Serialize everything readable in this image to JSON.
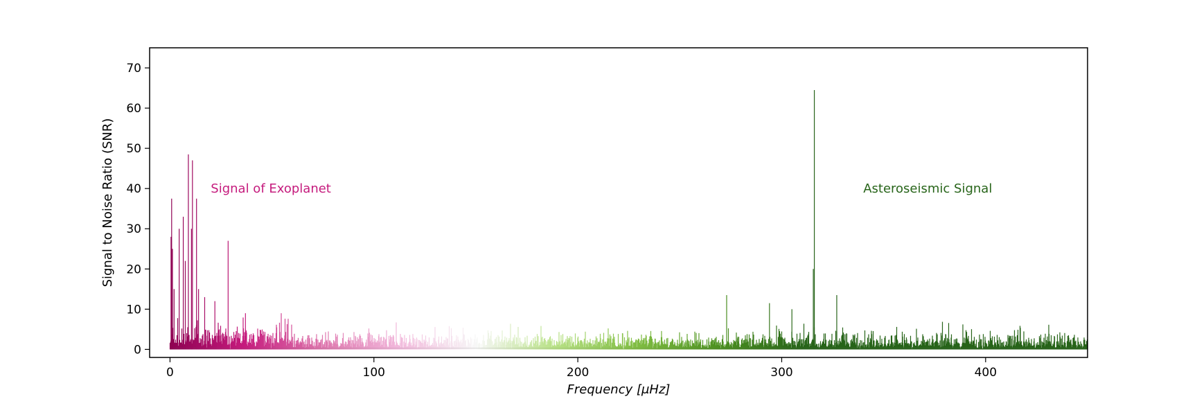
{
  "chart_data": {
    "type": "line",
    "xlabel": "Frequency [μHz]",
    "ylabel": "Signal to Noise Ratio (SNR)",
    "xlim": [
      -10,
      450
    ],
    "ylim": [
      -2,
      75
    ],
    "x_ticks": [
      0,
      100,
      200,
      300,
      400
    ],
    "y_ticks": [
      0,
      10,
      20,
      30,
      40,
      50,
      60,
      70
    ],
    "grid": false,
    "colormap": "PiYG",
    "colors": {
      "low_freq": "#8e0152",
      "mid_low": "#c51b7d",
      "mid_pink": "#de77ae",
      "light_pink": "#f1b6da",
      "neutral": "#f7f7f7",
      "light_green": "#b8e186",
      "mid_green": "#7fbc41",
      "green": "#4d9221",
      "high_freq": "#276419"
    },
    "peaks": [
      {
        "x": 0.5,
        "y": 28
      },
      {
        "x": 0.8,
        "y": 37.5
      },
      {
        "x": 1.2,
        "y": 25
      },
      {
        "x": 2.0,
        "y": 15
      },
      {
        "x": 4.5,
        "y": 30
      },
      {
        "x": 6.5,
        "y": 33
      },
      {
        "x": 7.5,
        "y": 22
      },
      {
        "x": 9.0,
        "y": 48.5
      },
      {
        "x": 10.5,
        "y": 30
      },
      {
        "x": 11.0,
        "y": 47
      },
      {
        "x": 13.0,
        "y": 37.5
      },
      {
        "x": 14.0,
        "y": 15
      },
      {
        "x": 17.0,
        "y": 13
      },
      {
        "x": 22.0,
        "y": 12
      },
      {
        "x": 28.5,
        "y": 27
      },
      {
        "x": 37.0,
        "y": 9
      },
      {
        "x": 273.0,
        "y": 13.5
      },
      {
        "x": 294.0,
        "y": 11.5
      },
      {
        "x": 305.0,
        "y": 10
      },
      {
        "x": 315.5,
        "y": 20
      },
      {
        "x": 316.0,
        "y": 64.5
      },
      {
        "x": 327.0,
        "y": 13.5
      }
    ],
    "noise_level": 2,
    "annotations": [
      {
        "text": "Signal of Exoplanet",
        "x": 20,
        "y": 40,
        "color": "#c51b7d"
      },
      {
        "text": "Asteroseismic Signal",
        "x": 340,
        "y": 40,
        "color": "#276419"
      }
    ]
  }
}
